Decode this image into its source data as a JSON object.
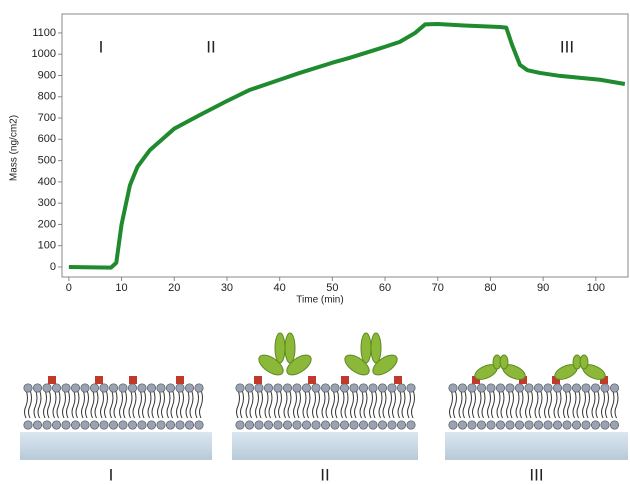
{
  "chart_data": {
    "type": "line",
    "x_label": "Time (min)",
    "y_label": "Mass (ng/cm2)",
    "x": [
      0,
      8,
      9,
      10,
      11.6,
      13,
      15.4,
      20,
      24.9,
      30,
      34.3,
      40,
      43.8,
      50,
      53.3,
      60,
      62.8,
      65.7,
      67.6,
      70,
      75,
      81.8,
      83,
      84.1,
      85.6,
      87,
      89.4,
      93.2,
      100.8,
      105.5
    ],
    "values": [
      0,
      -3,
      20,
      200,
      385,
      470,
      550,
      650,
      715,
      780,
      832,
      880,
      912,
      960,
      983,
      1035,
      1058,
      1100,
      1140,
      1142,
      1135,
      1128,
      1125,
      1044,
      950,
      925,
      912,
      898,
      880,
      860
    ],
    "color": "#1f8a2e",
    "xlim": [
      -1.3,
      106.1
    ],
    "ylim": [
      -47,
      1189
    ],
    "xticks": [
      0,
      10,
      20,
      30,
      40,
      50,
      60,
      70,
      80,
      90,
      100
    ],
    "yticks": [
      0,
      100,
      200,
      300,
      400,
      500,
      600,
      700,
      800,
      900,
      1000,
      1100
    ],
    "annotations": [
      "I",
      "II",
      "III"
    ]
  },
  "panels": [
    {
      "label": "I"
    },
    {
      "label": "II"
    },
    {
      "label": "III"
    }
  ]
}
